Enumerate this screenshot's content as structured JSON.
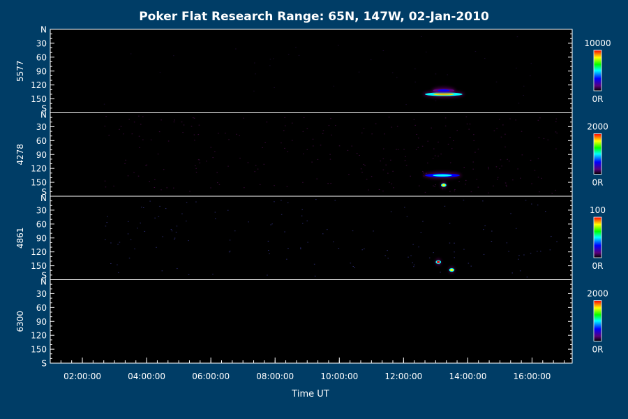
{
  "chart_data": {
    "type": "heatmap",
    "title": "Poker Flat Research Range: 65N, 147W, 02-Jan-2010",
    "xlabel": "Time UT",
    "x_ticks": [
      "02:00:00",
      "04:00:00",
      "06:00:00",
      "08:00:00",
      "10:00:00",
      "12:00:00",
      "14:00:00",
      "16:00:00"
    ],
    "x_range": [
      "01:00:00",
      "17:15:00"
    ],
    "y_ticks": [
      "N",
      "30",
      "60",
      "90",
      "120",
      "150",
      "S"
    ],
    "y_range": [
      0,
      180
    ],
    "data_start": "02:40:00",
    "colormap": [
      "#000000",
      "#5a007a",
      "#0000ff",
      "#00ffff",
      "#00ff00",
      "#ffff00",
      "#ff0000"
    ],
    "panels": [
      {
        "wavelength": "5577",
        "scale_max": "10000",
        "scale_min": "0R",
        "features": [
          {
            "time_start": "12:40:00",
            "time_end": "13:50:00",
            "angle": 140,
            "peak": 0.9
          },
          {
            "time_start": "12:55:00",
            "time_end": "13:35:00",
            "angle": 132,
            "peak": 0.3
          }
        ]
      },
      {
        "wavelength": "4278",
        "scale_max": "2000",
        "scale_min": "0R",
        "features": [
          {
            "time_start": "12:40:00",
            "time_end": "13:45:00",
            "angle": 135,
            "peak": 0.5
          },
          {
            "time_start": "13:10:00",
            "time_end": "13:20:00",
            "angle": 156,
            "peak": 0.9
          }
        ]
      },
      {
        "wavelength": "4861",
        "scale_max": "100",
        "scale_min": "0R",
        "features": [
          {
            "time_start": "13:00:00",
            "time_end": "13:10:00",
            "angle": 142,
            "peak": 0.95
          },
          {
            "time_start": "13:25:00",
            "time_end": "13:35:00",
            "angle": 159,
            "peak": 0.9
          }
        ]
      },
      {
        "wavelength": "6300",
        "scale_max": "2000",
        "scale_min": "0R",
        "features": []
      }
    ]
  }
}
